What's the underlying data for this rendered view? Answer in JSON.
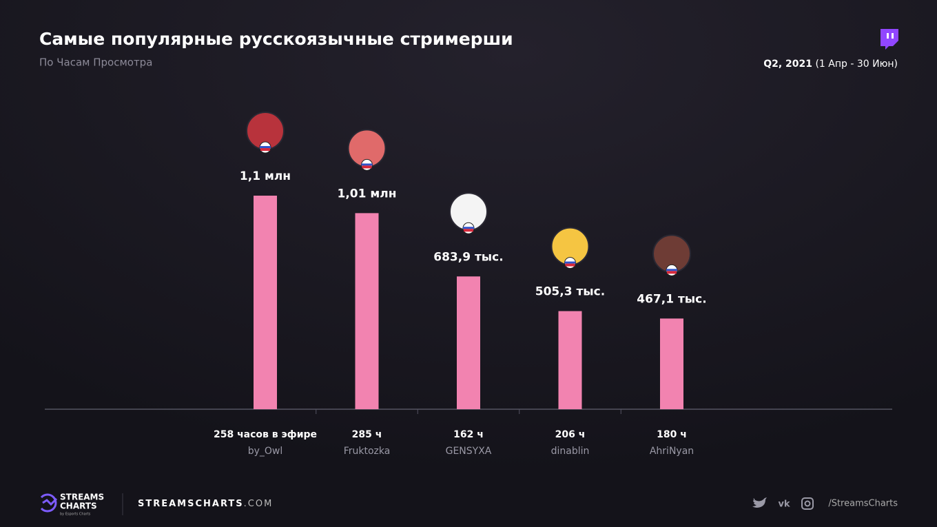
{
  "chart_data": {
    "type": "bar",
    "title": "Самые популярные русскоязычные стримерши",
    "subtitle": "По Часам Просмотра",
    "period": "Q2, 2021",
    "period_range": "(1 Апр - 30 Июн)",
    "categories": [
      "by_Owl",
      "Fruktozka",
      "GENSYXA",
      "dinablin",
      "AhriNyan"
    ],
    "airtime_labels": [
      "258 часов в эфире",
      "285 ч",
      "162 ч",
      "206 ч",
      "180 ч"
    ],
    "values": [
      1100000,
      1010000,
      683900,
      505300,
      467100
    ],
    "value_labels": [
      "1,1 млн",
      "1,01 млн",
      "683,9 тыс.",
      "505,3 тыс.",
      "467,1 тыс."
    ],
    "color": "#f283b0",
    "ylim": [
      0,
      1500000
    ]
  },
  "footer": {
    "logo_line1": "STREAMS",
    "logo_line2": "CHARTS",
    "logo_by": "by Esports Charts",
    "site_main": "STREAMSCHARTS",
    "site_tld": ".COM",
    "handle": "/StreamsCharts"
  }
}
